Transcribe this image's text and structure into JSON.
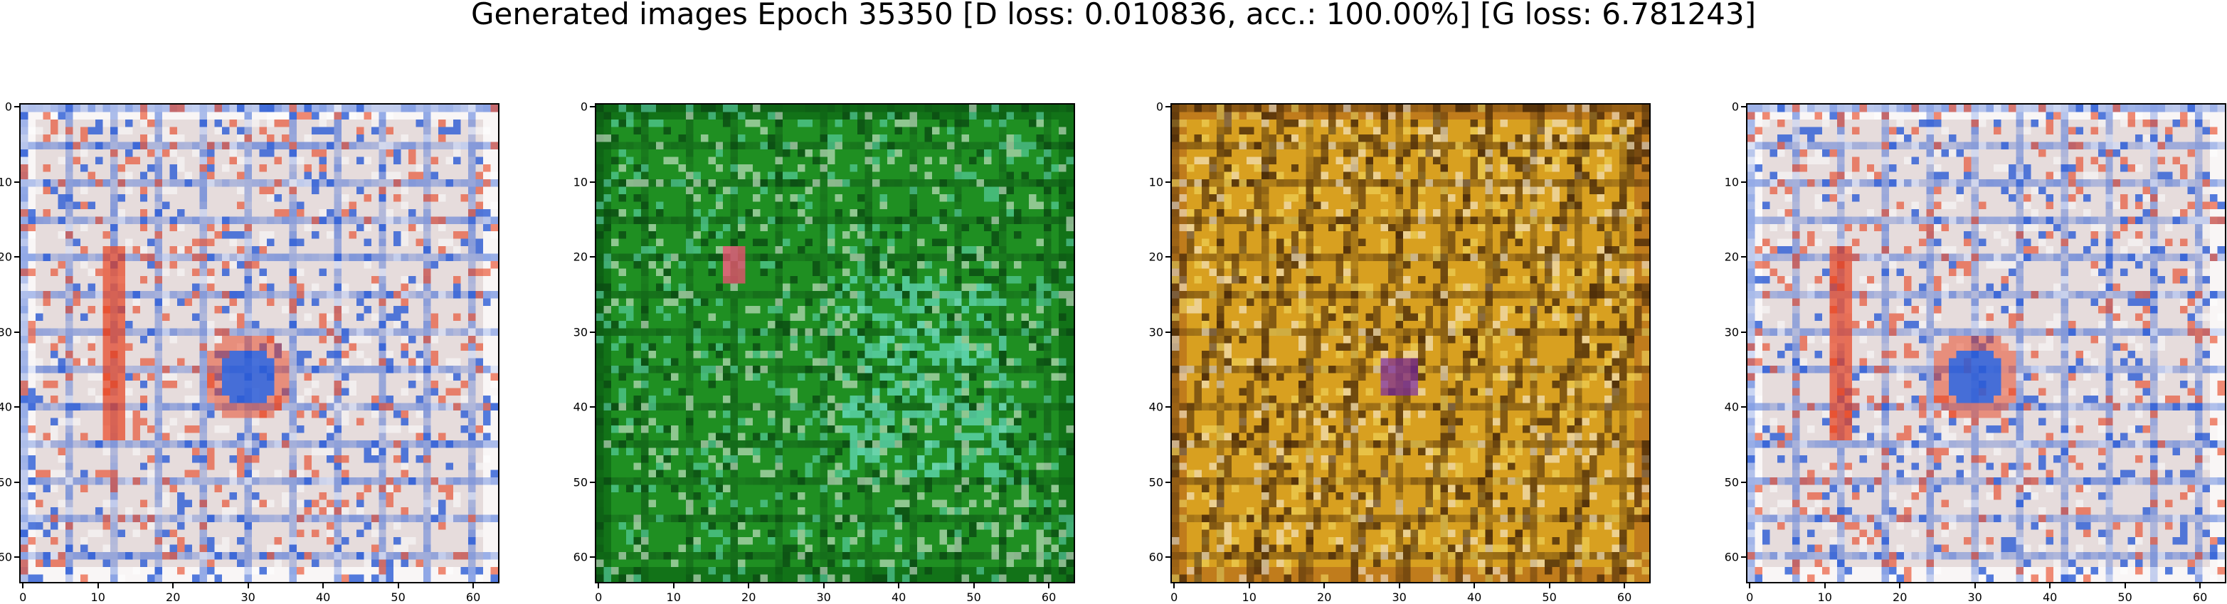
{
  "title": "Generated images Epoch 35350 [D loss: 0.010836, acc.: 100.00%] [G loss: 6.781243]",
  "panels": [
    {
      "name": "image-1",
      "theme": "pastel-white",
      "colors": {
        "base": "#e6dcdc",
        "accent1": "#e8401c",
        "accent2": "#2a5bd6",
        "frame": "#ffffff"
      }
    },
    {
      "name": "image-2",
      "theme": "green",
      "colors": {
        "base": "#1f8f22",
        "accent1": "#5fd6b0",
        "accent2": "#0a4a12",
        "frame": "#0d6a14"
      }
    },
    {
      "name": "image-3",
      "theme": "amber",
      "colors": {
        "base": "#d8a020",
        "accent1": "#f2d860",
        "accent2": "#4a2a08",
        "frame": "#b8701a"
      }
    },
    {
      "name": "image-4",
      "theme": "pastel-white",
      "colors": {
        "base": "#e6dcdc",
        "accent1": "#e8401c",
        "accent2": "#2a5bd6",
        "frame": "#ffffff"
      }
    }
  ],
  "axes": {
    "x_ticks": [
      "0",
      "10",
      "20",
      "30",
      "40",
      "50",
      "60"
    ],
    "y_ticks": [
      "0",
      "10",
      "20",
      "30",
      "40",
      "50",
      "60"
    ],
    "range": [
      0,
      63
    ]
  }
}
